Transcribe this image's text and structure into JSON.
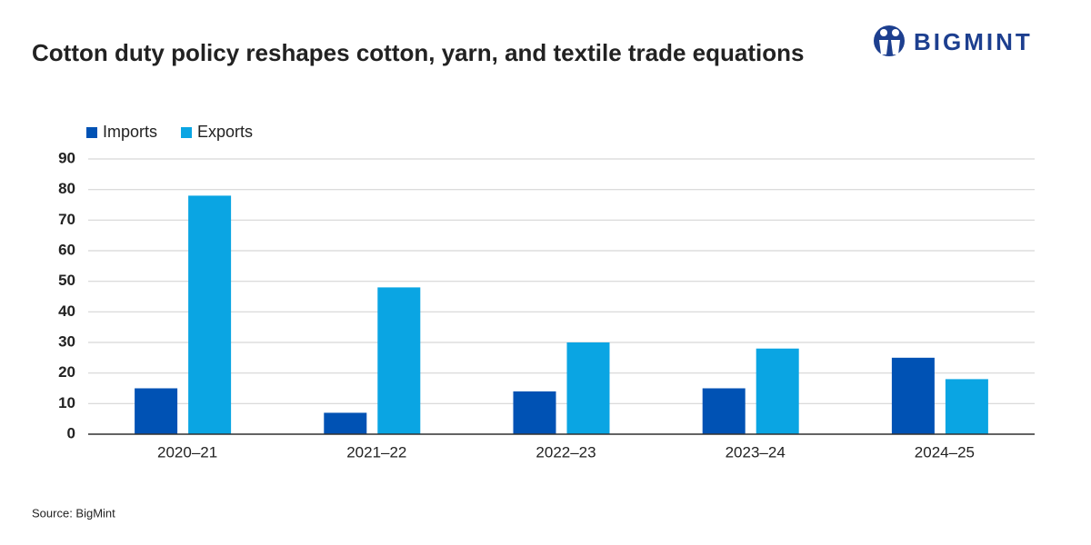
{
  "chart_data": {
    "type": "bar",
    "title": "Cotton duty policy reshapes cotton, yarn, and textile trade equations",
    "logo": "BIGMINT",
    "source": "Source: BigMint",
    "categories": [
      "2020–21",
      "2021–22",
      "2022–23",
      "2023–24",
      "2024–25"
    ],
    "series": [
      {
        "name": "Imports",
        "color": "#0052b4",
        "values": [
          15,
          7,
          14,
          15,
          25
        ]
      },
      {
        "name": "Exports",
        "color": "#0aa5e3",
        "values": [
          78,
          48,
          30,
          28,
          18
        ]
      }
    ],
    "ylim": [
      0,
      90
    ],
    "yticks": [
      0,
      10,
      20,
      30,
      40,
      50,
      60,
      70,
      80,
      90
    ],
    "grid": true,
    "legend": "top-left"
  }
}
